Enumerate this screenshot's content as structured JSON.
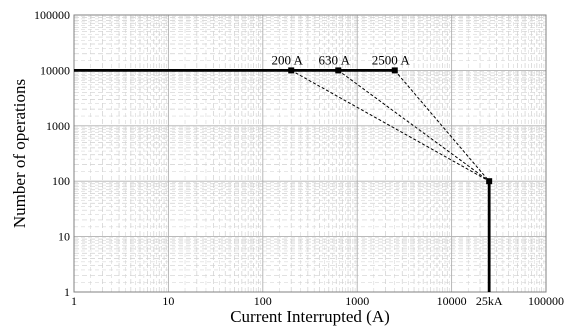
{
  "chart_data": {
    "type": "line",
    "xlabel": "Current Interrupted (A)",
    "ylabel": "Number of operations",
    "x_scale": "log",
    "y_scale": "log",
    "xlim": [
      1,
      100000
    ],
    "ylim": [
      1,
      100000
    ],
    "x_ticks": [
      {
        "value": 1,
        "label": "1"
      },
      {
        "value": 10,
        "label": "10"
      },
      {
        "value": 100,
        "label": "100"
      },
      {
        "value": 1000,
        "label": "1000"
      },
      {
        "value": 10000,
        "label": "10000"
      },
      {
        "value": 25000,
        "label": "25kA"
      },
      {
        "value": 100000,
        "label": "100000"
      }
    ],
    "y_ticks": [
      {
        "value": 1,
        "label": "1"
      },
      {
        "value": 10,
        "label": "10"
      },
      {
        "value": 100,
        "label": "100"
      },
      {
        "value": 1000,
        "label": "1000"
      },
      {
        "value": 10000,
        "label": "10000"
      },
      {
        "value": 100000,
        "label": "100000"
      }
    ],
    "grid": true,
    "main_curve": {
      "points": [
        {
          "x": 1,
          "y": 10000
        },
        {
          "x": 2500,
          "y": 10000
        },
        {
          "x": 25000,
          "y": 100
        },
        {
          "x": 25000,
          "y": 1
        }
      ]
    },
    "series": [
      {
        "label": "200 A",
        "points": [
          {
            "x": 200,
            "y": 10000
          },
          {
            "x": 25000,
            "y": 100
          }
        ]
      },
      {
        "label": "630 A",
        "points": [
          {
            "x": 630,
            "y": 10000
          },
          {
            "x": 25000,
            "y": 100
          }
        ]
      },
      {
        "label": "2500 A",
        "points": [
          {
            "x": 2500,
            "y": 10000
          },
          {
            "x": 25000,
            "y": 100
          }
        ]
      }
    ],
    "markers": [
      {
        "x": 200,
        "y": 10000
      },
      {
        "x": 630,
        "y": 10000
      },
      {
        "x": 2500,
        "y": 10000
      },
      {
        "x": 25000,
        "y": 100
      }
    ],
    "colors": {
      "line": "#000000",
      "grid_major": "#b0b0b0",
      "grid_minor": "#cfcfcf",
      "frame": "#808080"
    }
  }
}
